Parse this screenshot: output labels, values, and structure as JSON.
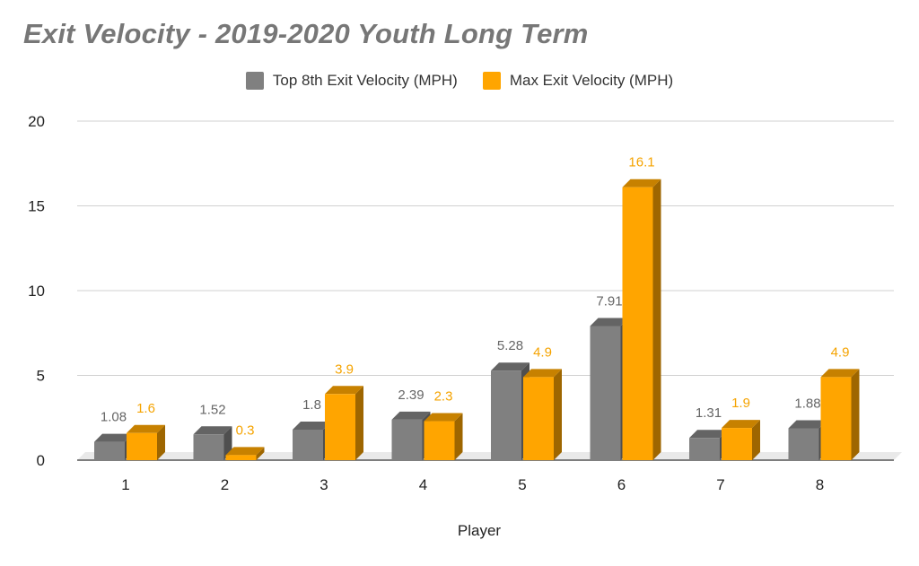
{
  "chart_data": {
    "type": "bar",
    "title": "Exit Velocity - 2019-2020 Youth Long Term",
    "xlabel": "Player",
    "ylabel": "",
    "categories": [
      "1",
      "2",
      "3",
      "4",
      "5",
      "6",
      "7",
      "8"
    ],
    "ylim": [
      0,
      20
    ],
    "yticks": [
      0,
      5,
      10,
      15,
      20
    ],
    "grid": true,
    "legend_position": "top",
    "series": [
      {
        "name": "Top 8th Exit Velocity (MPH)",
        "color": "#808080",
        "values": [
          1.08,
          1.52,
          1.8,
          2.39,
          5.28,
          7.91,
          1.31,
          1.88
        ],
        "labels": [
          "1.08",
          "1.52",
          "1.8",
          "2.39",
          "5.28",
          "7.91",
          "1.31",
          "1.88"
        ]
      },
      {
        "name": "Max Exit Velocity (MPH)",
        "color": "#FFA500",
        "values": [
          1.6,
          0.3,
          3.9,
          2.3,
          4.9,
          16.1,
          1.9,
          4.9
        ],
        "labels": [
          "1.6",
          "0.3",
          "3.9",
          "2.3",
          "4.9",
          "16.1",
          "1.9",
          "4.9"
        ]
      }
    ]
  }
}
